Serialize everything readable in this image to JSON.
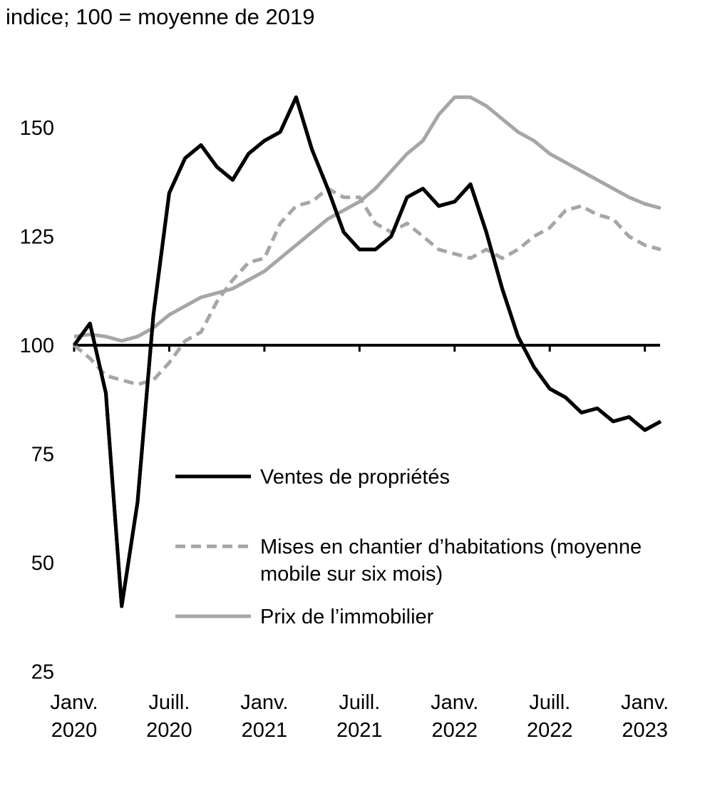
{
  "chart_data": {
    "type": "line",
    "title": "",
    "ylabel": "indice; 100 = moyenne de 2019",
    "xlabel": "",
    "ylim": [
      25,
      160
    ],
    "baseline": 100,
    "yticks": [
      25,
      50,
      75,
      100,
      125,
      150
    ],
    "xtick_labels": [
      {
        "index": 0,
        "line1": "Janv.",
        "line2": "2020"
      },
      {
        "index": 6,
        "line1": "Juill.",
        "line2": "2020"
      },
      {
        "index": 12,
        "line1": "Janv.",
        "line2": "2021"
      },
      {
        "index": 18,
        "line1": "Juill.",
        "line2": "2021"
      },
      {
        "index": 24,
        "line1": "Janv.",
        "line2": "2022"
      },
      {
        "index": 30,
        "line1": "Juill.",
        "line2": "2022"
      },
      {
        "index": 36,
        "line1": "Janv.",
        "line2": "2023"
      }
    ],
    "n_points": 38,
    "series": [
      {
        "name": "Ventes de propriétés",
        "style": "solid",
        "color": "#000000",
        "values": [
          100,
          105,
          89,
          40,
          64,
          107,
          135,
          143,
          146,
          141,
          138,
          144,
          147,
          149,
          157,
          145,
          136,
          126,
          122,
          122,
          125,
          134,
          136,
          132,
          133,
          137,
          126,
          113,
          102,
          95,
          90,
          88,
          84.5,
          85.5,
          82.5,
          83.5,
          80.5,
          82.5
        ]
      },
      {
        "name": "Mises en chantier d'habitations (moyenne mobile sur six mois)",
        "style": "dashed",
        "color": "#a6a6a6",
        "values": [
          100,
          97,
          93,
          92,
          91,
          92,
          96,
          101,
          103,
          110,
          115,
          119,
          120,
          128,
          132,
          133,
          136,
          134,
          134,
          128,
          126,
          128,
          125,
          122,
          121,
          120,
          122,
          120,
          122,
          125,
          127,
          131,
          132,
          130,
          129,
          125,
          123,
          122
        ]
      },
      {
        "name": "Prix de l'immobilier",
        "style": "solid",
        "color": "#a6a6a6",
        "values": [
          102,
          102.5,
          102,
          101,
          102,
          104,
          107,
          109,
          111,
          112,
          113,
          115,
          117,
          120,
          123,
          126,
          129,
          131,
          133,
          136,
          140,
          144,
          147,
          153,
          157,
          157,
          155,
          152,
          149,
          147,
          144,
          142,
          140,
          138,
          136,
          134,
          132.5,
          131.5
        ]
      }
    ],
    "legend": [
      {
        "line1": "Ventes de propriétés",
        "line2": ""
      },
      {
        "line1": "Mises en chantier d’habitations (moyenne",
        "line2": "mobile sur six mois)"
      },
      {
        "line1": "Prix de l’immobilier",
        "line2": ""
      }
    ]
  }
}
